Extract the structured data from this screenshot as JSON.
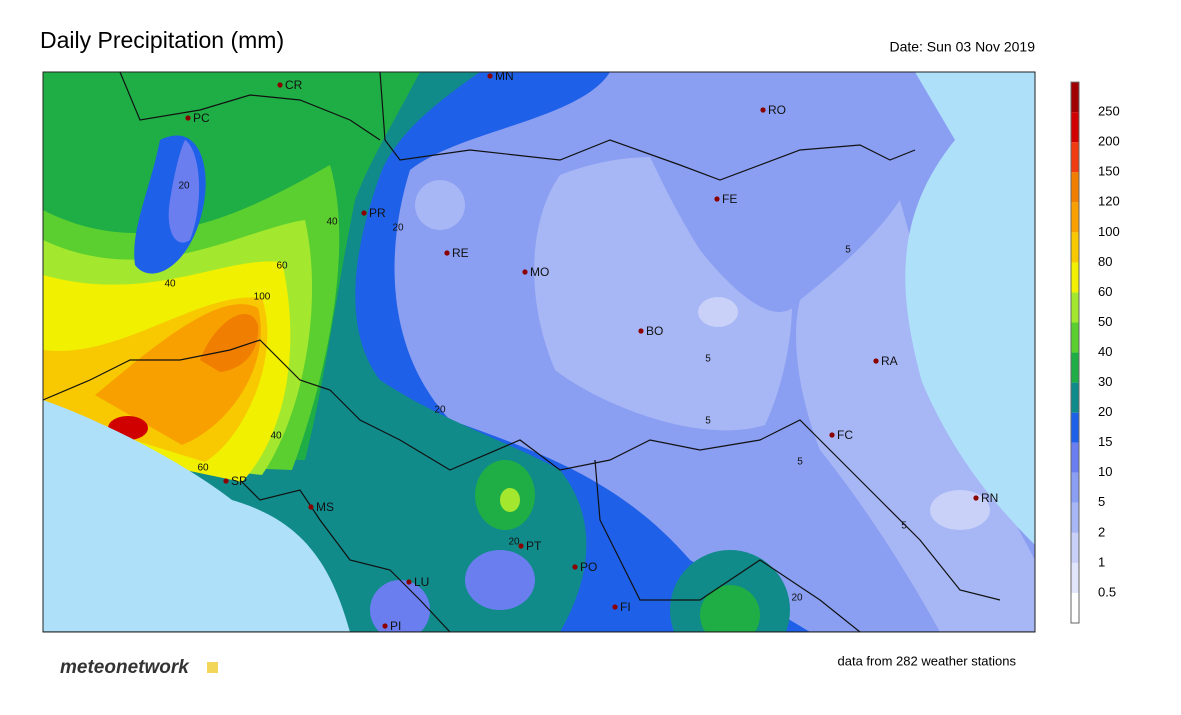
{
  "header": {
    "title": "Daily Precipitation (mm)",
    "date": "Date: Sun 03 Nov 2019"
  },
  "legend": {
    "levels": [
      0.5,
      1,
      2,
      5,
      10,
      15,
      20,
      30,
      40,
      50,
      60,
      80,
      100,
      120,
      150,
      200,
      250
    ],
    "colors": [
      "#ffffff",
      "#e2e6fb",
      "#c9d1f8",
      "#a7b6f5",
      "#8a9ef2",
      "#6a7ef0",
      "#1f60e8",
      "#118a8a",
      "#1fae45",
      "#5ccf30",
      "#a3e82e",
      "#f0f000",
      "#f8c800",
      "#f8a000",
      "#f07e00",
      "#f03c10",
      "#d00000",
      "#a00000"
    ]
  },
  "stations": [
    "CR",
    "MN",
    "PC",
    "RO",
    "FE",
    "PR",
    "RE",
    "MO",
    "BO",
    "RA",
    "FC",
    "RN",
    "SP",
    "MS",
    "PT",
    "PO",
    "LU",
    "FI",
    "PI"
  ],
  "contour_labels": [
    "20",
    "40",
    "60",
    "100",
    "40",
    "60",
    "40",
    "20",
    "20",
    "5",
    "5",
    "5",
    "5",
    "5",
    "20",
    "20"
  ],
  "footer": {
    "logo": "meteonetwork",
    "note": "data from 282 weather stations"
  }
}
